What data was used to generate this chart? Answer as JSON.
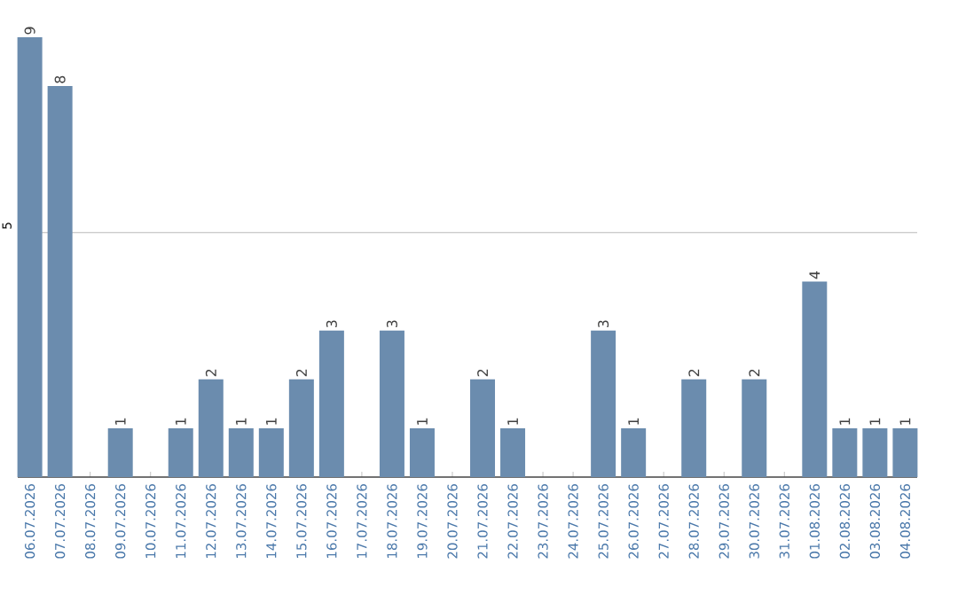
{
  "chart_data": {
    "type": "bar",
    "categories": [
      "06.07.2026",
      "07.07.2026",
      "08.07.2026",
      "09.07.2026",
      "10.07.2026",
      "11.07.2026",
      "12.07.2026",
      "13.07.2026",
      "14.07.2026",
      "15.07.2026",
      "16.07.2026",
      "17.07.2026",
      "18.07.2026",
      "19.07.2026",
      "20.07.2026",
      "21.07.2026",
      "22.07.2026",
      "23.07.2026",
      "24.07.2026",
      "25.07.2026",
      "26.07.2026",
      "27.07.2026",
      "28.07.2026",
      "29.07.2026",
      "30.07.2026",
      "31.07.2026",
      "01.08.2026",
      "02.08.2026",
      "03.08.2026",
      "04.08.2026"
    ],
    "values": [
      9,
      8,
      0,
      1,
      0,
      1,
      2,
      1,
      1,
      2,
      3,
      0,
      3,
      1,
      0,
      2,
      1,
      0,
      0,
      3,
      1,
      0,
      2,
      0,
      2,
      0,
      4,
      1,
      1,
      1
    ],
    "value_labels": [
      "9",
      "8",
      null,
      "1",
      null,
      "1",
      "2",
      "1",
      "1",
      "2",
      "3",
      null,
      "3",
      "1",
      null,
      "2",
      "1",
      null,
      null,
      "3",
      "1",
      null,
      "2",
      null,
      "2",
      null,
      "4",
      "1",
      "1",
      "1"
    ],
    "color": "#6b8cae",
    "ylim": [
      0,
      9
    ],
    "yticks": [
      {
        "value": 0,
        "label": null
      },
      5
    ],
    "grid": "y"
  }
}
